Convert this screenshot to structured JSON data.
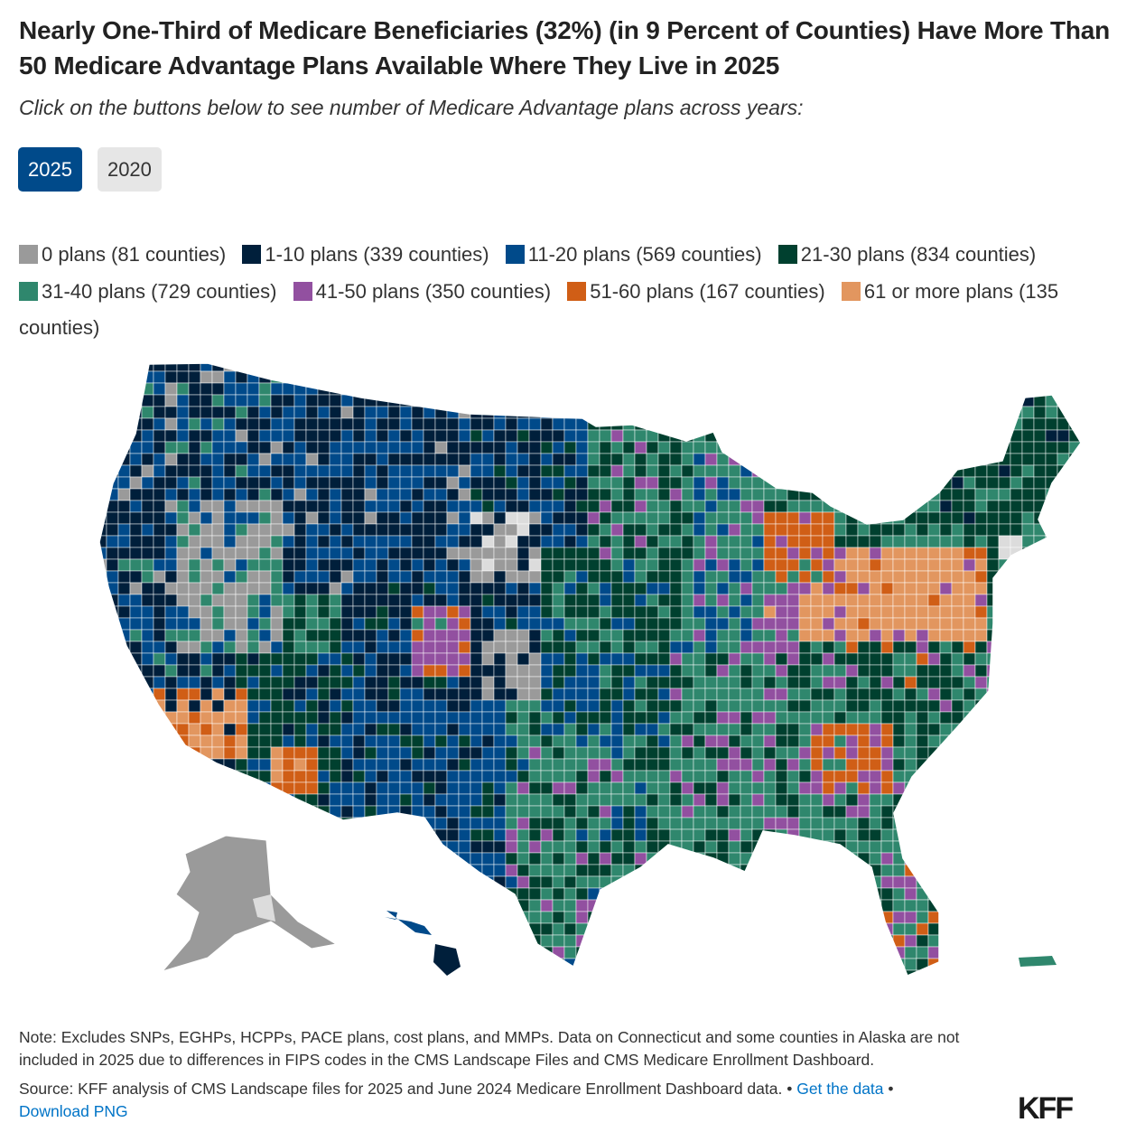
{
  "title": "Nearly One-Third of Medicare Beneficiaries (32%) (in 9 Percent of Counties) Have More Than 50 Medicare Advantage Plans Available Where They Live in 2025",
  "subtitle": "Click on the buttons below to see number of Medicare Advantage plans across years:",
  "year_buttons": [
    {
      "label": "2025",
      "active": true
    },
    {
      "label": "2020",
      "active": false
    }
  ],
  "legend": [
    {
      "label": "0 plans (81 counties)",
      "color": "#9a9a9a"
    },
    {
      "label": "1-10 plans (339 counties)",
      "color": "#001f3b"
    },
    {
      "label": "11-20 plans (569 counties)",
      "color": "#004a8a"
    },
    {
      "label": "21-30 plans (834 counties)",
      "color": "#00402f"
    },
    {
      "label": "31-40 plans (729 counties)",
      "color": "#2f876d"
    },
    {
      "label": "41-50 plans (350 counties)",
      "color": "#9250a0"
    },
    {
      "label": "51-60 plans (167 counties)",
      "color": "#d05e16"
    },
    {
      "label": "61 or more plans (135 counties)",
      "color": "#e2965f"
    }
  ],
  "no_data_color": "#dcdcdc",
  "note": "Note: Excludes SNPs, EGHPs, HCPPs, PACE plans, cost plans, and MMPs. Data on Connecticut and some counties in Alaska are not included in 2025 due to differences in FIPS codes in the CMS Landscape Files and CMS Medicare Enrollment Dashboard.",
  "source": {
    "text": "Source: KFF analysis of CMS Landscape files for 2025 and June 2024 Medicare Enrollment Dashboard data. •",
    "get_data": "Get the data",
    "separator": "•",
    "download": "Download PNG"
  },
  "logo": "KFF"
}
